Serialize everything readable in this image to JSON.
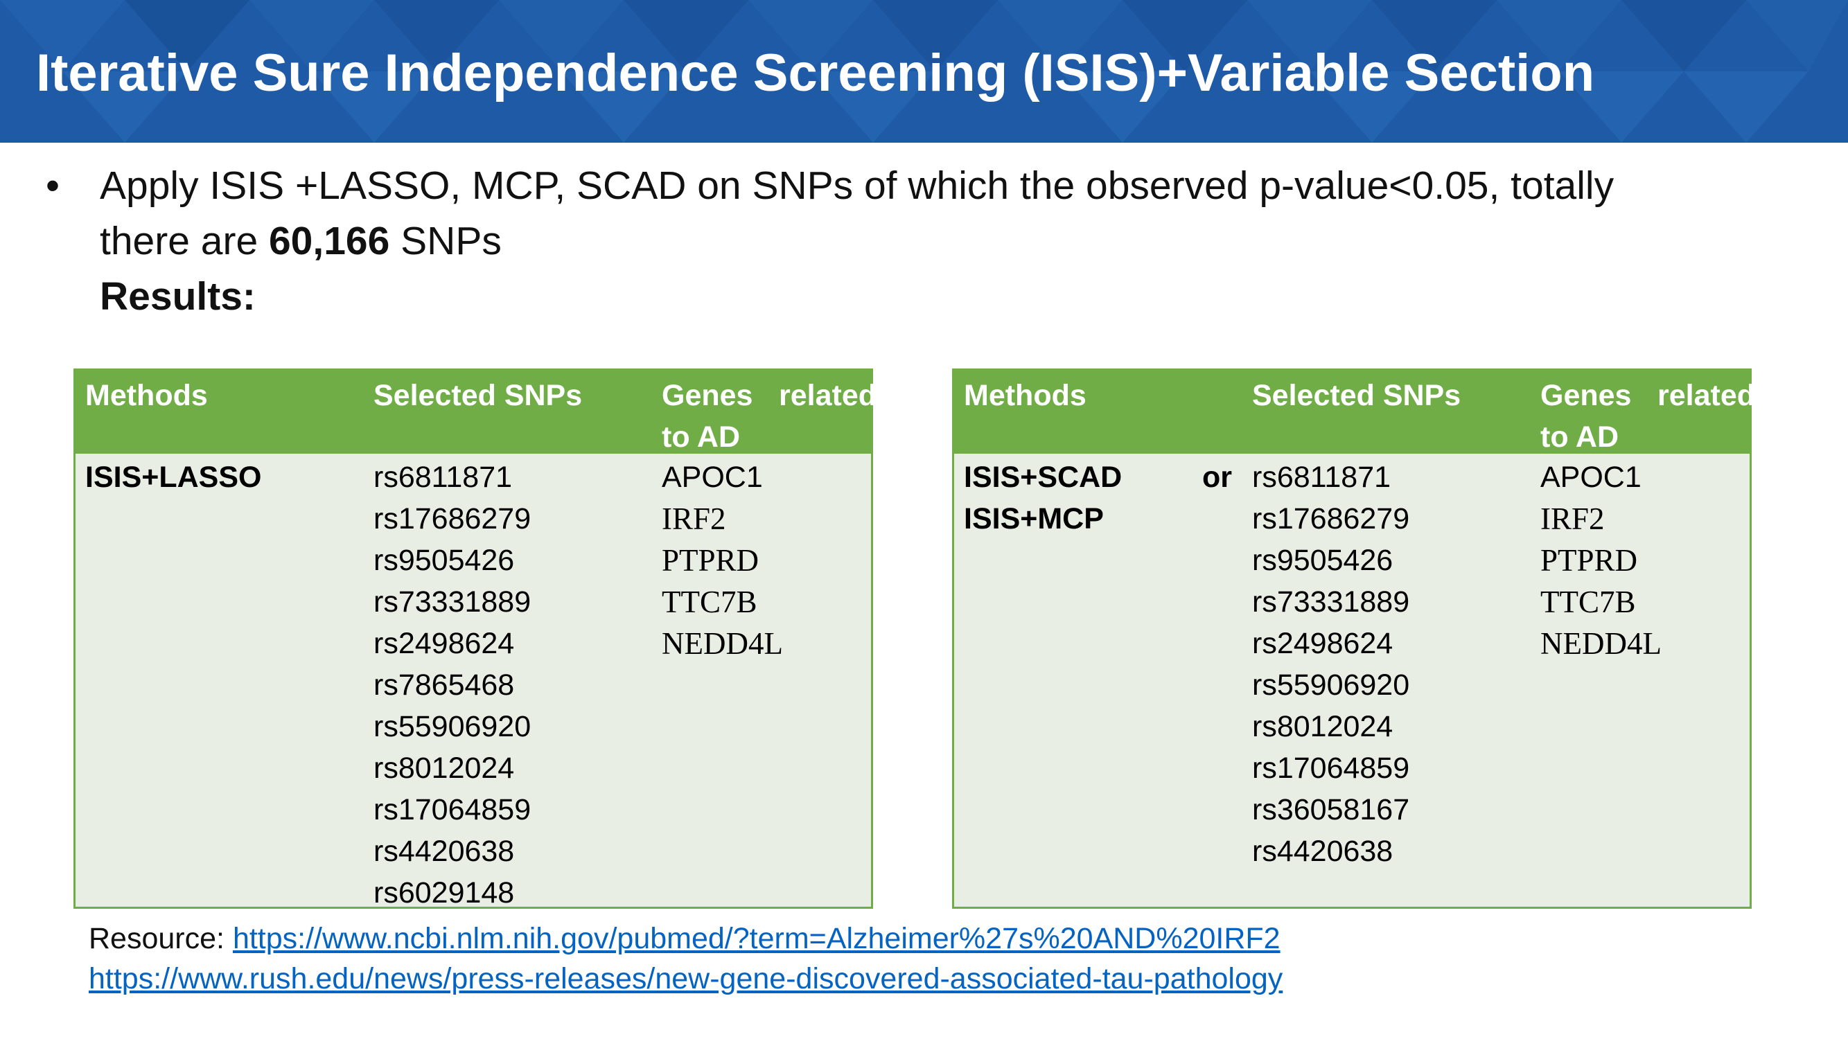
{
  "title": "Iterative Sure Independence Screening (ISIS)+Variable Section",
  "bullet": {
    "line1": "Apply ISIS +LASSO, MCP, SCAD on SNPs of which the observed p-value<0.05, totally",
    "line2_pre": "there are ",
    "line2_bold": "60,166",
    "line2_post": " SNPs",
    "results_label": "Results:"
  },
  "table_headers": {
    "methods": "Methods",
    "snps": "Selected SNPs",
    "genes_word1": "Genes",
    "genes_word2": "related",
    "genes_line2": "to AD"
  },
  "left_table": {
    "methods": [
      "ISIS+LASSO"
    ],
    "snps": [
      "rs6811871",
      "rs17686279",
      "rs9505426",
      "rs73331889",
      "rs2498624",
      "rs7865468",
      "rs55906920",
      "rs8012024",
      "rs17064859",
      "rs4420638",
      "rs6029148"
    ],
    "genes_first": "APOC1",
    "genes_rest": [
      "IRF2",
      "PTPRD",
      "TTC7B",
      "NEDD4L"
    ]
  },
  "right_table": {
    "method_line1": "ISIS+SCAD",
    "method_or": "or",
    "method_line2": "ISIS+MCP",
    "snps": [
      "rs6811871",
      "rs17686279",
      "rs9505426",
      "rs73331889",
      "rs2498624",
      "rs55906920",
      "rs8012024",
      "rs17064859",
      "rs36058167",
      "rs4420638"
    ],
    "genes_first": "APOC1",
    "genes_rest": [
      "IRF2",
      "PTPRD",
      "TTC7B",
      "NEDD4L"
    ]
  },
  "resource": {
    "label": "Resource: ",
    "link1": "https://www.ncbi.nlm.nih.gov/pubmed/?term=Alzheimer%27s%20AND%20IRF2",
    "link2": "https://www.rush.edu/news/press-releases/new-gene-discovered-associated-tau-pathology"
  },
  "colors": {
    "banner": "#1f5aa6",
    "table_header": "#70ad47",
    "table_body": "#e8eee4",
    "link": "#0563c1"
  }
}
